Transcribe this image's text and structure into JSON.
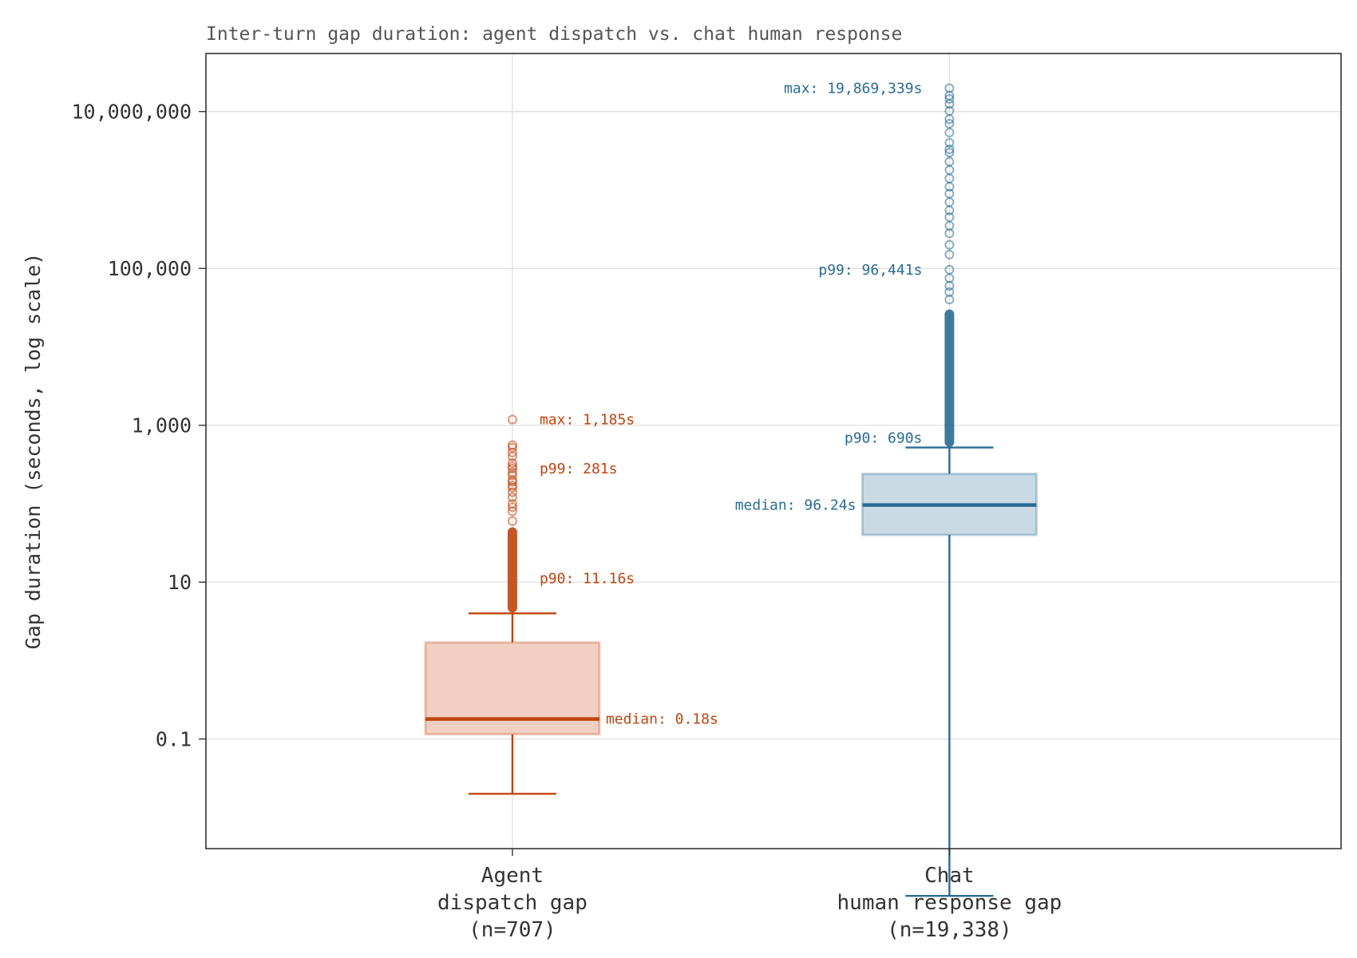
{
  "chart_data": {
    "type": "box",
    "title": "Inter-turn gap duration: agent dispatch vs. chat human response",
    "ylabel": "Gap duration (seconds, log scale)",
    "yscale": "log",
    "ylim": [
      0.004,
      55000000
    ],
    "yticks": [
      0.1,
      10,
      1000,
      100000,
      10000000
    ],
    "ytick_labels": [
      "0.1",
      "10",
      "1,000",
      "100,000",
      "10,000,000"
    ],
    "grid": true,
    "categories": [
      [
        "Agent",
        "dispatch gap",
        "(n=707)"
      ],
      [
        "Chat",
        "human response gap",
        "(n=19,338)"
      ]
    ],
    "series": [
      {
        "color": "#c0440f",
        "box_fill": "#f1d0c3",
        "whisker_low": 0.02,
        "q1": 0.115,
        "median": 0.18,
        "q3": 1.7,
        "whisker_high": 4.0,
        "outlier_band": [
          4.1,
          50
        ],
        "outliers": [
          60,
          80,
          90,
          100,
          120,
          140,
          160,
          170,
          190,
          200,
          230,
          250,
          281,
          300,
          330,
          400,
          450,
          520,
          560,
          1185
        ],
        "annotations": [
          {
            "label": "max: 1,185s",
            "value": 1185
          },
          {
            "label": "p99: 281s",
            "value": 281
          },
          {
            "label": "p90: 11.16s",
            "value": 11.16
          },
          {
            "label": "median: 0.18s",
            "value": 0.18
          }
        ]
      },
      {
        "color": "#2a6b93",
        "box_fill": "#c9dae5",
        "whisker_low": 0.001,
        "q1": 40,
        "median": 96.24,
        "q3": 240,
        "whisker_high": 520,
        "outlier_band": [
          530,
          30000
        ],
        "outliers": [
          40000,
          50000,
          60000,
          75000,
          96441,
          150000,
          200000,
          280000,
          350000,
          450000,
          550000,
          700000,
          900000,
          1100000,
          1400000,
          1800000,
          2300000,
          3000000,
          3300000,
          4000000,
          5400000,
          7000000,
          8000000,
          10200000,
          12500000,
          14500000,
          16000000,
          19869339
        ],
        "annotations": [
          {
            "label": "max: 19,869,339s",
            "value": 19869339
          },
          {
            "label": "p99: 96,441s",
            "value": 96441
          },
          {
            "label": "p90: 690s",
            "value": 690
          },
          {
            "label": "median: 96.24s",
            "value": 96.24
          }
        ]
      }
    ]
  }
}
